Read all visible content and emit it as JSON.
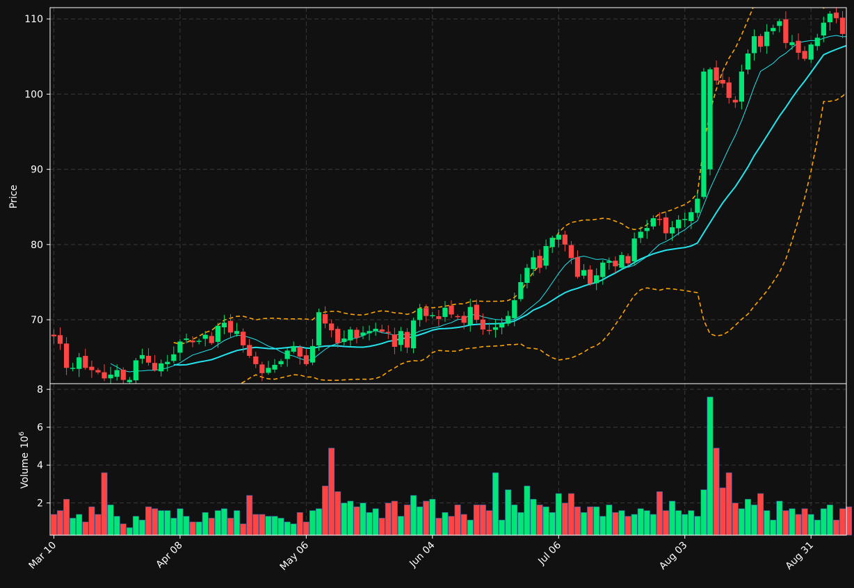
{
  "chart_data": {
    "type": "candlestick",
    "theme": {
      "background": "#111111",
      "up_color": "#00e676",
      "down_color": "#ff4444",
      "grid": "#3a3a3a",
      "text": "#ffffff",
      "ma_fast_color": "#22e5ee",
      "ma_slow_color": "#22e5ee",
      "band_color": "#ffa500"
    },
    "price_panel": {
      "ylabel": "Price",
      "ylim": [
        61.5,
        111.5
      ],
      "yticks": [
        70,
        80,
        90,
        100,
        110
      ],
      "grid": true
    },
    "volume_panel": {
      "ylabel": "Volume",
      "ylabel_exponent": "10",
      "ylabel_exponent_power": "6",
      "ylim": [
        0.3,
        8.3
      ],
      "yticks": [
        2,
        4,
        6,
        8
      ],
      "grid": true
    },
    "x_ticks": [
      {
        "index": 0,
        "label": "Mar 10"
      },
      {
        "index": 20,
        "label": "Apr 08"
      },
      {
        "index": 40,
        "label": "May 06"
      },
      {
        "index": 60,
        "label": "Jun 04"
      },
      {
        "index": 80,
        "label": "Jul 06"
      },
      {
        "index": 100,
        "label": "Aug 03"
      },
      {
        "index": 120,
        "label": "Aug 31"
      }
    ],
    "x_range": [
      -0.6,
      125.6
    ],
    "close": [
      67.8,
      66.8,
      63.6,
      63.6,
      65.0,
      63.6,
      63.3,
      63.0,
      62.2,
      62.7,
      63.3,
      62.0,
      62.0,
      64.6,
      65.3,
      64.3,
      63.3,
      64.2,
      64.4,
      65.4,
      67.1,
      67.5,
      67.0,
      67.2,
      68.0,
      66.9,
      69.2,
      69.6,
      68.3,
      68.5,
      66.6,
      65.2,
      64.1,
      62.9,
      63.6,
      64.0,
      64.5,
      65.9,
      66.5,
      65.1,
      64.1,
      66.5,
      71.0,
      69.5,
      68.6,
      66.9,
      67.5,
      68.7,
      67.6,
      68.3,
      68.5,
      68.8,
      68.4,
      68.3,
      66.4,
      68.5,
      66.3,
      69.9,
      71.5,
      70.5,
      70.6,
      70.1,
      71.6,
      70.7,
      70.4,
      69.6,
      71.7,
      70.0,
      68.7,
      68.6,
      69.0,
      69.5,
      70.5,
      72.6,
      75.0,
      76.9,
      78.3,
      76.9,
      79.8,
      80.9,
      81.3,
      80.0,
      78.2,
      75.7,
      76.6,
      74.8,
      75.9,
      77.6,
      77.8,
      77.1,
      78.6,
      77.5,
      80.8,
      81.7,
      82.2,
      83.5,
      83.4,
      81.5,
      82.3,
      83.3,
      83.4,
      84.3,
      86.1,
      103.0,
      103.3,
      101.8,
      101.4,
      99.5,
      98.9,
      103.0,
      105.4,
      107.7,
      106.3,
      108.3,
      108.8,
      109.7,
      106.8,
      106.9,
      105.5,
      104.7,
      106.6,
      107.5,
      109.5,
      110.7,
      110.1,
      108.0,
      107.2
    ],
    "volume": [
      1.4,
      1.6,
      2.2,
      1.2,
      1.4,
      1.0,
      1.8,
      1.4,
      3.6,
      1.9,
      1.3,
      0.9,
      0.7,
      1.3,
      1.1,
      1.8,
      1.7,
      1.6,
      1.6,
      1.2,
      1.7,
      1.3,
      1.0,
      1.0,
      1.5,
      1.2,
      1.6,
      1.7,
      1.2,
      1.6,
      0.9,
      2.4,
      1.4,
      1.4,
      1.3,
      1.3,
      1.2,
      1.0,
      0.9,
      1.5,
      1.0,
      1.6,
      1.7,
      2.9,
      4.9,
      2.6,
      2.0,
      2.1,
      1.8,
      2.0,
      1.5,
      1.7,
      1.2,
      2.0,
      2.1,
      1.3,
      1.9,
      2.4,
      1.8,
      2.1,
      2.2,
      1.2,
      1.5,
      1.3,
      1.9,
      1.4,
      1.1,
      1.9,
      1.9,
      1.6,
      3.6,
      1.1,
      2.7,
      1.9,
      1.5,
      2.9,
      2.2,
      1.9,
      1.8,
      1.5,
      2.5,
      2.0,
      2.5,
      1.8,
      1.5,
      1.8,
      1.8,
      1.3,
      1.9,
      1.5,
      1.6,
      1.3,
      1.4,
      1.7,
      1.6,
      1.4,
      2.6,
      1.6,
      2.1,
      1.6,
      1.4,
      1.6,
      1.3,
      2.7,
      7.6,
      4.9,
      2.8,
      3.6,
      2.0,
      1.7,
      2.2,
      1.9,
      2.5,
      1.6,
      1.1,
      2.1,
      1.6,
      1.7,
      1.4,
      1.7,
      1.4,
      1.1,
      1.7,
      1.9,
      1.1,
      1.7,
      1.8
    ]
  }
}
